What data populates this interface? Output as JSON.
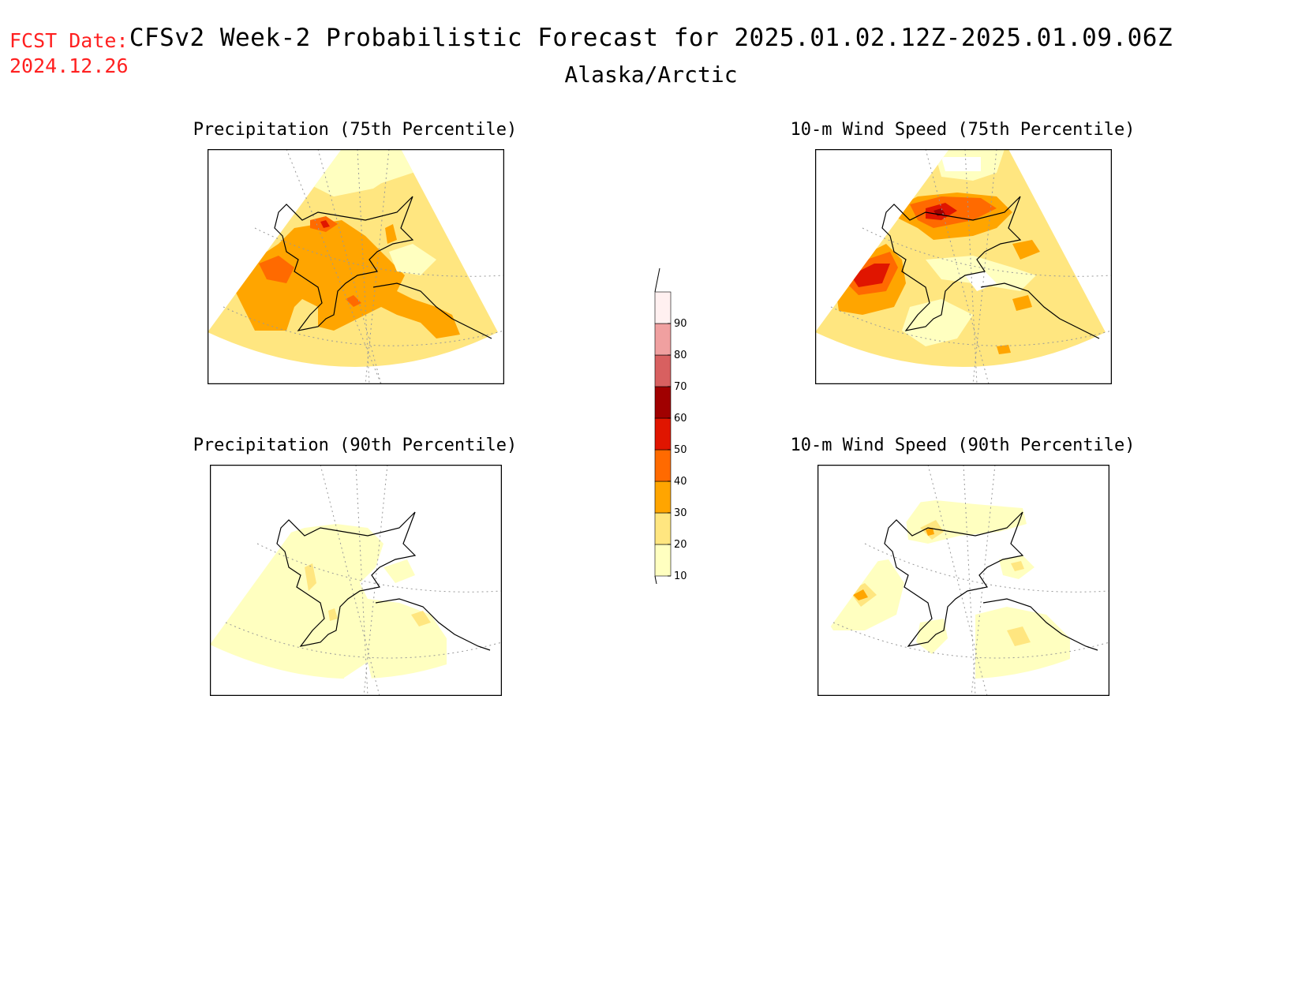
{
  "header": {
    "fcst_label": "FCST Date:",
    "fcst_date": "2024.12.26",
    "title": "CFSv2 Week-2 Probabilistic Forecast for 2025.01.02.12Z-2025.01.09.06Z",
    "subtitle": "Alaska/Arctic"
  },
  "panels": [
    {
      "title": "Precipitation (75th Percentile)"
    },
    {
      "title": "10-m Wind Speed (75th Percentile)"
    },
    {
      "title": "Precipitation (90th Percentile)"
    },
    {
      "title": "10-m Wind Speed (90th Percentile)"
    }
  ],
  "colorbar": {
    "levels": [
      "10",
      "20",
      "30",
      "40",
      "50",
      "60",
      "70",
      "80",
      "90"
    ],
    "colors": [
      "#ffffc0",
      "#ffe680",
      "#ffa500",
      "#ff6a00",
      "#e01500",
      "#a00000",
      "#d86060",
      "#f0a0a0",
      "#fff0f0"
    ]
  }
}
